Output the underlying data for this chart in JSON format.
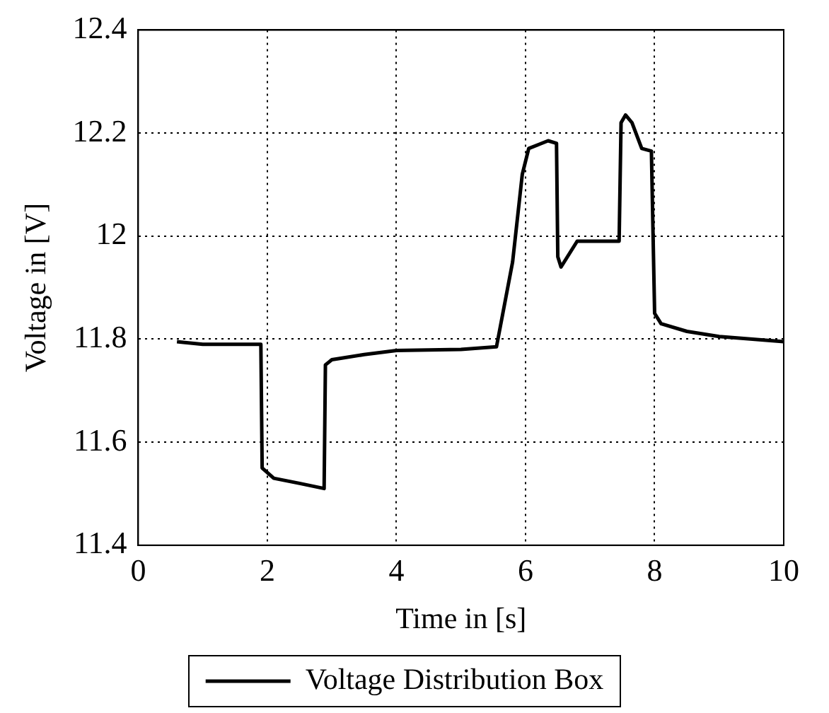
{
  "chart_data": {
    "type": "line",
    "xlabel": "Time in [s]",
    "ylabel": "Voltage in [V]",
    "xlim": [
      0,
      10
    ],
    "xticks": [
      0,
      2,
      4,
      6,
      8,
      10
    ],
    "ylim": [
      11.4,
      12.4
    ],
    "yticks": [
      11.4,
      11.6,
      11.8,
      12,
      12.2,
      12.4
    ],
    "grid": true,
    "legend": "bottom",
    "marker": "none",
    "line_style": "solid",
    "series": [
      {
        "name": "Voltage Distribution Box",
        "color": "#000000",
        "x": [
          0.6,
          1.0,
          1.5,
          1.9,
          1.92,
          2.1,
          2.5,
          2.88,
          2.9,
          3.0,
          3.5,
          4.0,
          5.0,
          5.55,
          5.8,
          5.95,
          6.05,
          6.35,
          6.48,
          6.5,
          6.55,
          6.8,
          7.45,
          7.48,
          7.55,
          7.65,
          7.8,
          7.95,
          8.0,
          8.1,
          8.5,
          9.0,
          10.0
        ],
        "values": [
          11.795,
          11.79,
          11.79,
          11.79,
          11.55,
          11.53,
          11.52,
          11.51,
          11.75,
          11.76,
          11.77,
          11.778,
          11.78,
          11.785,
          11.95,
          12.12,
          12.17,
          12.185,
          12.18,
          11.96,
          11.94,
          11.99,
          11.99,
          12.22,
          12.235,
          12.22,
          12.17,
          12.165,
          11.85,
          11.83,
          11.815,
          11.805,
          11.795
        ]
      }
    ]
  }
}
